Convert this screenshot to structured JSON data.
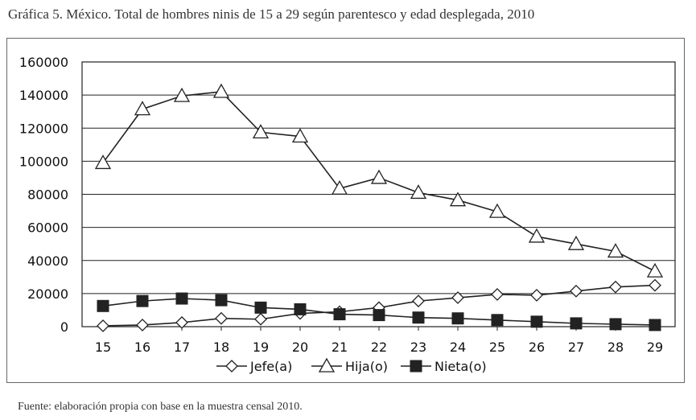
{
  "header": {
    "title": "Gráfica 5. México. Total de hombres ninis de 15 a 29 según parentesco y edad desplegada, 2010"
  },
  "footer": {
    "source": "Fuente: elaboración propia con base en la muestra censal 2010."
  },
  "chart_data": {
    "type": "line",
    "title": "Gráfica 5. México. Total de hombres ninis de 15 a 29 según parentesco y edad desplegada, 2010",
    "xlabel": "",
    "ylabel": "",
    "ylim": [
      0,
      160000
    ],
    "yticks": [
      0,
      20000,
      40000,
      60000,
      80000,
      100000,
      120000,
      140000,
      160000
    ],
    "categories": [
      "15",
      "16",
      "17",
      "18",
      "19",
      "20",
      "21",
      "22",
      "23",
      "24",
      "25",
      "26",
      "27",
      "28",
      "29"
    ],
    "grid": true,
    "legend": "bottom",
    "series": [
      {
        "name": "Jefe(a)",
        "marker": "diamond-open",
        "values": [
          500,
          1000,
          2500,
          5000,
          4500,
          8000,
          9000,
          11500,
          15500,
          17500,
          19500,
          19000,
          21500,
          24000,
          25000
        ]
      },
      {
        "name": "Hija(o)",
        "marker": "triangle-open",
        "values": [
          99000,
          131500,
          139500,
          142000,
          117500,
          115000,
          83500,
          90000,
          81000,
          76500,
          69500,
          54500,
          50000,
          45500,
          33500
        ]
      },
      {
        "name": "Nieta(o)",
        "marker": "square-filled",
        "values": [
          12500,
          15500,
          17000,
          16000,
          11500,
          10500,
          7500,
          7000,
          5500,
          5000,
          4000,
          3000,
          2000,
          1500,
          1000
        ]
      }
    ]
  }
}
